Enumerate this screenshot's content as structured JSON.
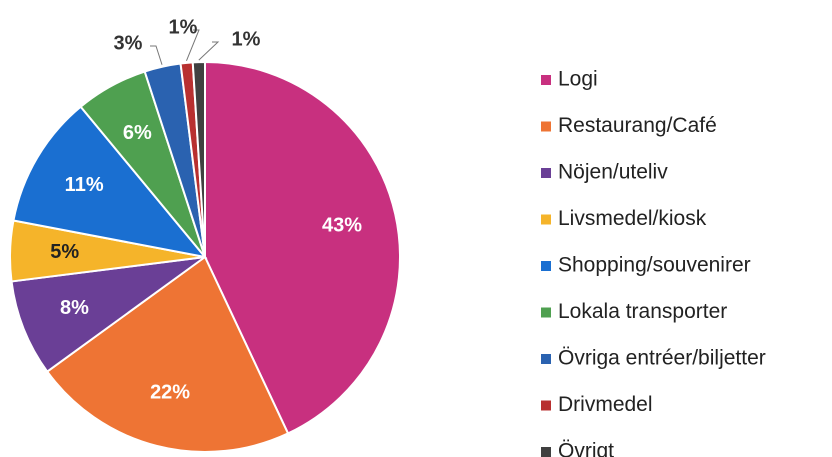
{
  "chart_data": {
    "type": "pie",
    "categories": [
      "Logi",
      "Restaurang/Café",
      "Nöjen/uteliv",
      "Livsmedel/kiosk",
      "Shopping/souvenirer",
      "Lokala transporter",
      "Övriga entréer/biljetter",
      "Drivmedel",
      "Övrigt"
    ],
    "values": [
      43,
      22,
      8,
      5,
      11,
      6,
      3,
      1,
      1
    ],
    "value_labels": [
      "43%",
      "22%",
      "8%",
      "5%",
      "11%",
      "6%",
      "3%",
      "1%",
      "1%"
    ],
    "colors": [
      "#c8307f",
      "#ee7434",
      "#6a3f96",
      "#f5b42a",
      "#1a6fd1",
      "#4fa050",
      "#2a62b0",
      "#b83030",
      "#404040"
    ]
  }
}
